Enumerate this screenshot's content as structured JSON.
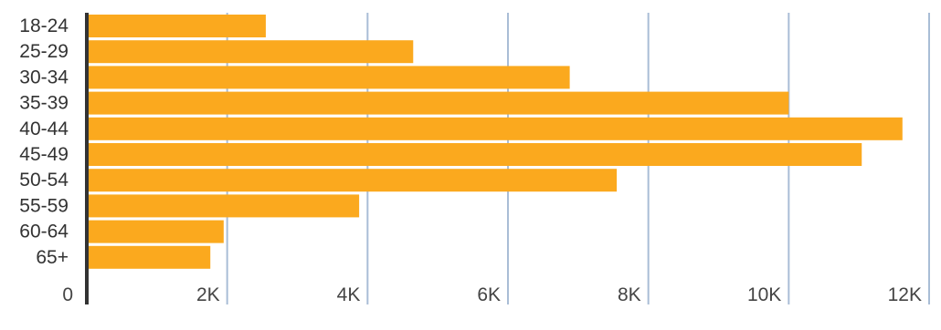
{
  "chart_data": {
    "type": "bar",
    "orientation": "horizontal",
    "categories": [
      "18-24",
      "25-29",
      "30-34",
      "35-39",
      "40-44",
      "45-49",
      "50-54",
      "55-59",
      "60-64",
      "65+"
    ],
    "values": [
      2550,
      4650,
      6880,
      10000,
      11620,
      11040,
      7550,
      3880,
      1950,
      1760
    ],
    "xlim": [
      0,
      12000
    ],
    "x_ticks": [
      0,
      2000,
      4000,
      6000,
      8000,
      10000,
      12000
    ],
    "x_tick_labels": [
      "0",
      "2K",
      "4K",
      "6K",
      "8K",
      "10K",
      "12K"
    ],
    "title": "",
    "xlabel": "",
    "ylabel": "",
    "grid": "vertical",
    "legend": "none",
    "bar_color": "#FBA91E",
    "grid_color": "#A9BDD6",
    "axis_color": "#333333"
  }
}
